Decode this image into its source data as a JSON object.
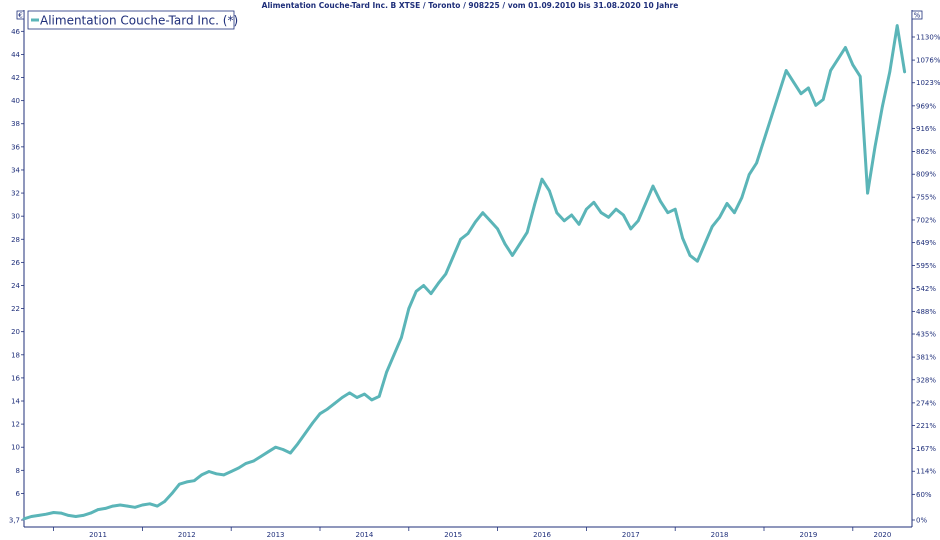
{
  "chart_data": {
    "type": "line",
    "title": "Alimentation Couche-Tard Inc. B XTSE / Toronto / 908225 / vom 01.09.2010 bis 31.08.2020 10 Jahre",
    "left_axis_unit": "€",
    "right_axis_unit": "%",
    "legend_position": "top-left",
    "grid": false,
    "line_color": "#5bb5b8",
    "axis_color": "#1f2f7a",
    "ylim": [
      3.7,
      47.5
    ],
    "xlim": [
      "2010-09",
      "2020-09"
    ],
    "left_ticks": [
      3.7,
      6,
      8,
      10,
      12,
      14,
      16,
      18,
      20,
      22,
      24,
      26,
      28,
      30,
      32,
      34,
      36,
      38,
      40,
      42,
      44,
      46
    ],
    "left_tick_labels": [
      "3,7",
      "6",
      "8",
      "10",
      "12",
      "14",
      "16",
      "18",
      "20",
      "22",
      "24",
      "26",
      "28",
      "30",
      "32",
      "34",
      "36",
      "38",
      "40",
      "42",
      "44",
      "46"
    ],
    "right_ticks": [
      {
        "label": "0%",
        "value": 3.7
      },
      {
        "label": "60%",
        "value": 5.92
      },
      {
        "label": "114%",
        "value": 7.92
      },
      {
        "label": "167%",
        "value": 9.88
      },
      {
        "label": "221%",
        "value": 11.88
      },
      {
        "label": "274%",
        "value": 13.84
      },
      {
        "label": "328%",
        "value": 15.84
      },
      {
        "label": "381%",
        "value": 17.8
      },
      {
        "label": "435%",
        "value": 19.8
      },
      {
        "label": "488%",
        "value": 21.76
      },
      {
        "label": "542%",
        "value": 23.75
      },
      {
        "label": "595%",
        "value": 25.72
      },
      {
        "label": "649%",
        "value": 27.71
      },
      {
        "label": "702%",
        "value": 29.67
      },
      {
        "label": "755%",
        "value": 31.64
      },
      {
        "label": "809%",
        "value": 33.63
      },
      {
        "label": "862%",
        "value": 35.59
      },
      {
        "label": "916%",
        "value": 37.59
      },
      {
        "label": "969%",
        "value": 39.55
      },
      {
        "label": "1023%",
        "value": 41.55
      },
      {
        "label": "1076%",
        "value": 43.51
      },
      {
        "label": "1130%",
        "value": 45.51
      }
    ],
    "x_tick_labels": [
      "2011",
      "2012",
      "2013",
      "2014",
      "2015",
      "2016",
      "2017",
      "2018",
      "2019",
      "2020"
    ],
    "series": [
      {
        "name": "Alimentation Couche-Tard Inc. (*)",
        "points": [
          [
            "2010-09",
            3.8
          ],
          [
            "2010-10",
            4.0
          ],
          [
            "2010-11",
            4.1
          ],
          [
            "2010-12",
            4.2
          ],
          [
            "2011-01",
            4.35
          ],
          [
            "2011-02",
            4.3
          ],
          [
            "2011-03",
            4.1
          ],
          [
            "2011-04",
            4.0
          ],
          [
            "2011-05",
            4.1
          ],
          [
            "2011-06",
            4.3
          ],
          [
            "2011-07",
            4.6
          ],
          [
            "2011-08",
            4.7
          ],
          [
            "2011-09",
            4.9
          ],
          [
            "2011-10",
            5.0
          ],
          [
            "2011-11",
            4.9
          ],
          [
            "2011-12",
            4.8
          ],
          [
            "2012-01",
            5.0
          ],
          [
            "2012-02",
            5.1
          ],
          [
            "2012-03",
            4.9
          ],
          [
            "2012-04",
            5.3
          ],
          [
            "2012-05",
            6.0
          ],
          [
            "2012-06",
            6.8
          ],
          [
            "2012-07",
            7.0
          ],
          [
            "2012-08",
            7.1
          ],
          [
            "2012-09",
            7.6
          ],
          [
            "2012-10",
            7.9
          ],
          [
            "2012-11",
            7.7
          ],
          [
            "2012-12",
            7.6
          ],
          [
            "2013-01",
            7.9
          ],
          [
            "2013-02",
            8.2
          ],
          [
            "2013-03",
            8.6
          ],
          [
            "2013-04",
            8.8
          ],
          [
            "2013-05",
            9.2
          ],
          [
            "2013-06",
            9.6
          ],
          [
            "2013-07",
            10.0
          ],
          [
            "2013-08",
            9.8
          ],
          [
            "2013-09",
            9.5
          ],
          [
            "2013-10",
            10.3
          ],
          [
            "2013-11",
            11.2
          ],
          [
            "2013-12",
            12.1
          ],
          [
            "2014-01",
            12.9
          ],
          [
            "2014-02",
            13.3
          ],
          [
            "2014-03",
            13.8
          ],
          [
            "2014-04",
            14.3
          ],
          [
            "2014-05",
            14.7
          ],
          [
            "2014-06",
            14.3
          ],
          [
            "2014-07",
            14.6
          ],
          [
            "2014-08",
            14.1
          ],
          [
            "2014-09",
            14.4
          ],
          [
            "2014-10",
            16.5
          ],
          [
            "2014-11",
            18.0
          ],
          [
            "2014-12",
            19.5
          ],
          [
            "2015-01",
            22.0
          ],
          [
            "2015-02",
            23.5
          ],
          [
            "2015-03",
            24.0
          ],
          [
            "2015-04",
            23.3
          ],
          [
            "2015-05",
            24.2
          ],
          [
            "2015-06",
            25.0
          ],
          [
            "2015-07",
            26.5
          ],
          [
            "2015-08",
            28.0
          ],
          [
            "2015-09",
            28.5
          ],
          [
            "2015-10",
            29.5
          ],
          [
            "2015-11",
            30.3
          ],
          [
            "2015-12",
            29.6
          ],
          [
            "2016-01",
            28.9
          ],
          [
            "2016-02",
            27.6
          ],
          [
            "2016-03",
            26.6
          ],
          [
            "2016-04",
            27.6
          ],
          [
            "2016-05",
            28.6
          ],
          [
            "2016-06",
            31.0
          ],
          [
            "2016-07",
            33.2
          ],
          [
            "2016-08",
            32.2
          ],
          [
            "2016-09",
            30.3
          ],
          [
            "2016-10",
            29.6
          ],
          [
            "2016-11",
            30.1
          ],
          [
            "2016-12",
            29.3
          ],
          [
            "2017-01",
            30.6
          ],
          [
            "2017-02",
            31.2
          ],
          [
            "2017-03",
            30.3
          ],
          [
            "2017-04",
            29.9
          ],
          [
            "2017-05",
            30.6
          ],
          [
            "2017-06",
            30.1
          ],
          [
            "2017-07",
            28.9
          ],
          [
            "2017-08",
            29.6
          ],
          [
            "2017-09",
            31.1
          ],
          [
            "2017-10",
            32.6
          ],
          [
            "2017-11",
            31.3
          ],
          [
            "2017-12",
            30.3
          ],
          [
            "2018-01",
            30.6
          ],
          [
            "2018-02",
            28.1
          ],
          [
            "2018-03",
            26.6
          ],
          [
            "2018-04",
            26.1
          ],
          [
            "2018-05",
            27.6
          ],
          [
            "2018-06",
            29.1
          ],
          [
            "2018-07",
            29.9
          ],
          [
            "2018-08",
            31.1
          ],
          [
            "2018-09",
            30.3
          ],
          [
            "2018-10",
            31.6
          ],
          [
            "2018-11",
            33.6
          ],
          [
            "2018-12",
            34.6
          ],
          [
            "2019-01",
            36.6
          ],
          [
            "2019-02",
            38.6
          ],
          [
            "2019-03",
            40.6
          ],
          [
            "2019-04",
            42.6
          ],
          [
            "2019-05",
            41.6
          ],
          [
            "2019-06",
            40.6
          ],
          [
            "2019-07",
            41.1
          ],
          [
            "2019-08",
            39.6
          ],
          [
            "2019-09",
            40.1
          ],
          [
            "2019-10",
            42.6
          ],
          [
            "2019-11",
            43.6
          ],
          [
            "2019-12",
            44.6
          ],
          [
            "2020-01",
            43.1
          ],
          [
            "2020-02",
            42.1
          ],
          [
            "2020-03",
            32.0
          ],
          [
            "2020-04",
            36.0
          ],
          [
            "2020-05",
            39.5
          ],
          [
            "2020-06",
            42.5
          ],
          [
            "2020-07",
            46.5
          ],
          [
            "2020-08",
            42.5
          ]
        ]
      }
    ]
  }
}
